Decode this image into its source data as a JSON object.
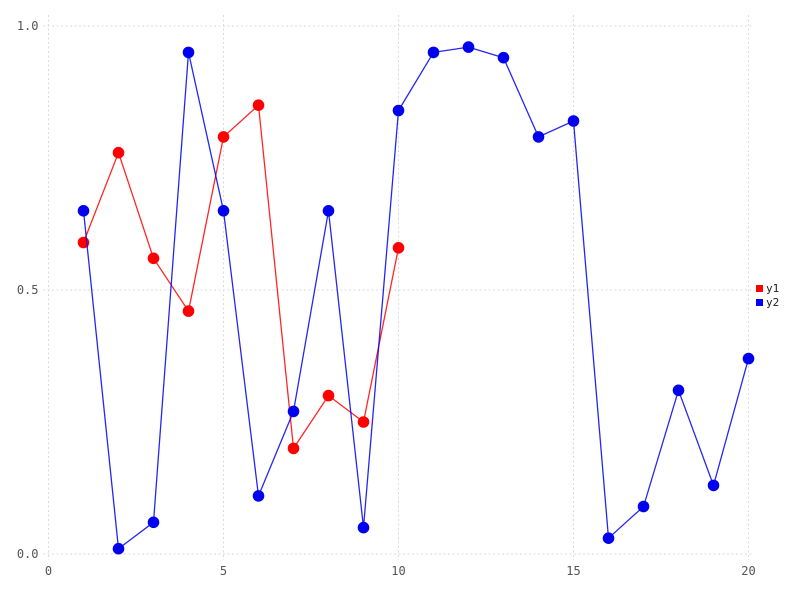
{
  "chart_data": {
    "type": "line",
    "title": "",
    "xlabel": "",
    "ylabel": "",
    "xlim": [
      0,
      20.2
    ],
    "ylim": [
      0,
      1.02
    ],
    "grid": true,
    "grid_style": "dotted",
    "legend_position": "outside-right",
    "marker": "circle",
    "x_ticks": [
      {
        "value": 0,
        "label": "0"
      },
      {
        "value": 5,
        "label": "5"
      },
      {
        "value": 10,
        "label": "10"
      },
      {
        "value": 15,
        "label": "15"
      },
      {
        "value": 20,
        "label": "20"
      }
    ],
    "y_ticks": [
      {
        "value": 0.0,
        "label": "0.0"
      },
      {
        "value": 0.5,
        "label": "0.5"
      },
      {
        "value": 1.0,
        "label": "1.0"
      }
    ],
    "series": [
      {
        "name": "y1",
        "color": "#ff0000",
        "x": [
          1,
          2,
          3,
          4,
          5,
          6,
          7,
          8,
          9,
          10
        ],
        "y": [
          0.59,
          0.76,
          0.56,
          0.46,
          0.79,
          0.85,
          0.2,
          0.3,
          0.25,
          0.58
        ]
      },
      {
        "name": "y2",
        "color": "#0000ee",
        "x": [
          1,
          2,
          3,
          4,
          5,
          6,
          7,
          8,
          9,
          10,
          11,
          12,
          13,
          14,
          15,
          16,
          17,
          18,
          19,
          20
        ],
        "y": [
          0.65,
          0.01,
          0.06,
          0.95,
          0.65,
          0.11,
          0.27,
          0.65,
          0.05,
          0.84,
          0.95,
          0.96,
          0.94,
          0.79,
          0.82,
          0.03,
          0.09,
          0.31,
          0.13,
          0.37
        ]
      }
    ]
  },
  "colors": {
    "background": "#ffffff",
    "gridline": "#d9d9e3",
    "tick_label": "#545454",
    "legend_text": "#1a1a1a"
  }
}
